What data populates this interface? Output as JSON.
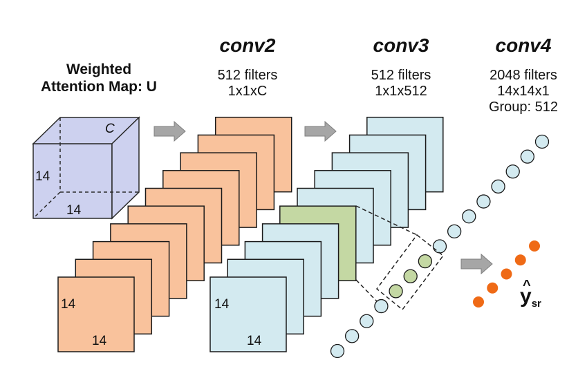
{
  "input_block": {
    "title_line1": "Weighted",
    "title_line2": "Attention Map: U",
    "depth_label": "C",
    "height_label": "14",
    "width_label": "14"
  },
  "conv2": {
    "title": "conv2",
    "line1": "512 filters",
    "line2": "1x1xC",
    "front_height": "14",
    "front_width": "14"
  },
  "conv3": {
    "title": "conv3",
    "line1": "512 filters",
    "line2": "1x1x512",
    "front_height": "14",
    "front_width": "14"
  },
  "conv4": {
    "title": "conv4",
    "line1": "2048 filters",
    "line2": "14x14x1",
    "line3": "Group: 512"
  },
  "output": {
    "label_base": "y",
    "label_hat": "^",
    "label_sub": "sr"
  },
  "colors": {
    "cube_fill": "#cdd1ef",
    "cube_stroke": "#2a2a2a",
    "conv2_fill": "#f9c29c",
    "conv3_fill": "#d3eaf0",
    "highlight_fill": "#c4d8a3",
    "arrow_fill": "#a6a6a6",
    "circle_fill": "#d3eaf0",
    "circle_green": "#c4d8a3",
    "output_dot": "#ef6a16"
  }
}
